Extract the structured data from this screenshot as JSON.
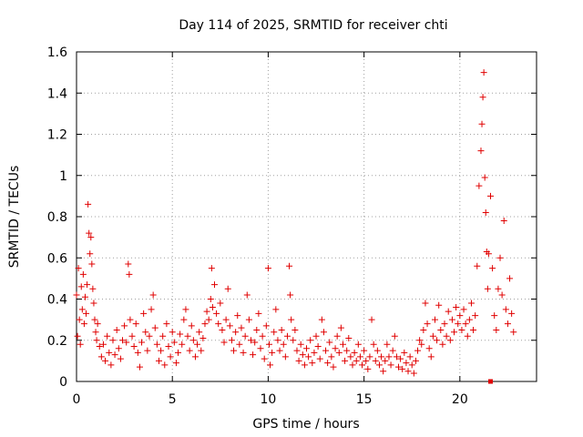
{
  "chart_data": {
    "type": "scatter",
    "title": "Day 114 of 2025, SRMTID for receiver chti",
    "xlabel": "GPS time / hours",
    "ylabel": "SRMTID / TECUs",
    "xlim": [
      0,
      24
    ],
    "ylim": [
      0,
      1.6
    ],
    "xticks": [
      0,
      5,
      10,
      15,
      20
    ],
    "xtick_labels": [
      "0",
      "5",
      "10",
      "15",
      "20"
    ],
    "yticks": [
      0,
      0.2,
      0.4,
      0.6,
      0.8,
      1,
      1.2,
      1.4,
      1.6
    ],
    "ytick_labels": [
      "0",
      "0.2",
      "0.4",
      "0.6",
      "0.8",
      "1",
      "1.2",
      "1.4",
      "1.6"
    ],
    "grid": true,
    "marker": "plus",
    "color": "#e00000",
    "series": [
      {
        "name": "SRMTID",
        "points": [
          [
            0.0,
            0.42
          ],
          [
            0.05,
            0.22
          ],
          [
            0.1,
            0.55
          ],
          [
            0.15,
            0.3
          ],
          [
            0.2,
            0.18
          ],
          [
            0.25,
            0.46
          ],
          [
            0.3,
            0.35
          ],
          [
            0.35,
            0.52
          ],
          [
            0.4,
            0.28
          ],
          [
            0.45,
            0.41
          ],
          [
            0.5,
            0.33
          ],
          [
            0.55,
            0.47
          ],
          [
            0.6,
            0.86
          ],
          [
            0.65,
            0.72
          ],
          [
            0.7,
            0.62
          ],
          [
            0.75,
            0.7
          ],
          [
            0.8,
            0.57
          ],
          [
            0.85,
            0.45
          ],
          [
            0.9,
            0.38
          ],
          [
            0.95,
            0.3
          ],
          [
            1.0,
            0.24
          ],
          [
            1.05,
            0.2
          ],
          [
            1.1,
            0.28
          ],
          [
            1.2,
            0.17
          ],
          [
            1.3,
            0.12
          ],
          [
            1.4,
            0.18
          ],
          [
            1.5,
            0.1
          ],
          [
            1.6,
            0.22
          ],
          [
            1.7,
            0.14
          ],
          [
            1.8,
            0.08
          ],
          [
            1.9,
            0.2
          ],
          [
            2.0,
            0.13
          ],
          [
            2.1,
            0.25
          ],
          [
            2.2,
            0.16
          ],
          [
            2.3,
            0.11
          ],
          [
            2.4,
            0.2
          ],
          [
            2.5,
            0.27
          ],
          [
            2.6,
            0.19
          ],
          [
            2.7,
            0.57
          ],
          [
            2.75,
            0.52
          ],
          [
            2.8,
            0.3
          ],
          [
            2.9,
            0.22
          ],
          [
            3.0,
            0.17
          ],
          [
            3.1,
            0.28
          ],
          [
            3.2,
            0.14
          ],
          [
            3.3,
            0.07
          ],
          [
            3.4,
            0.19
          ],
          [
            3.5,
            0.33
          ],
          [
            3.6,
            0.24
          ],
          [
            3.7,
            0.15
          ],
          [
            3.8,
            0.22
          ],
          [
            3.9,
            0.35
          ],
          [
            4.0,
            0.42
          ],
          [
            4.1,
            0.26
          ],
          [
            4.2,
            0.18
          ],
          [
            4.3,
            0.1
          ],
          [
            4.4,
            0.15
          ],
          [
            4.5,
            0.22
          ],
          [
            4.6,
            0.08
          ],
          [
            4.7,
            0.28
          ],
          [
            4.8,
            0.17
          ],
          [
            4.9,
            0.12
          ],
          [
            5.0,
            0.24
          ],
          [
            5.1,
            0.19
          ],
          [
            5.2,
            0.09
          ],
          [
            5.3,
            0.14
          ],
          [
            5.4,
            0.23
          ],
          [
            5.5,
            0.18
          ],
          [
            5.6,
            0.3
          ],
          [
            5.7,
            0.35
          ],
          [
            5.8,
            0.22
          ],
          [
            5.9,
            0.15
          ],
          [
            6.0,
            0.27
          ],
          [
            6.1,
            0.2
          ],
          [
            6.2,
            0.12
          ],
          [
            6.3,
            0.18
          ],
          [
            6.4,
            0.24
          ],
          [
            6.5,
            0.15
          ],
          [
            6.6,
            0.21
          ],
          [
            6.7,
            0.28
          ],
          [
            6.8,
            0.34
          ],
          [
            6.9,
            0.3
          ],
          [
            7.0,
            0.4
          ],
          [
            7.05,
            0.55
          ],
          [
            7.1,
            0.36
          ],
          [
            7.2,
            0.47
          ],
          [
            7.3,
            0.33
          ],
          [
            7.4,
            0.28
          ],
          [
            7.5,
            0.38
          ],
          [
            7.6,
            0.25
          ],
          [
            7.7,
            0.19
          ],
          [
            7.8,
            0.3
          ],
          [
            7.9,
            0.45
          ],
          [
            8.0,
            0.27
          ],
          [
            8.1,
            0.2
          ],
          [
            8.2,
            0.15
          ],
          [
            8.3,
            0.24
          ],
          [
            8.4,
            0.32
          ],
          [
            8.5,
            0.18
          ],
          [
            8.6,
            0.26
          ],
          [
            8.7,
            0.14
          ],
          [
            8.8,
            0.22
          ],
          [
            8.9,
            0.42
          ],
          [
            9.0,
            0.3
          ],
          [
            9.1,
            0.2
          ],
          [
            9.2,
            0.13
          ],
          [
            9.3,
            0.19
          ],
          [
            9.4,
            0.25
          ],
          [
            9.5,
            0.33
          ],
          [
            9.6,
            0.16
          ],
          [
            9.7,
            0.22
          ],
          [
            9.8,
            0.11
          ],
          [
            9.9,
            0.27
          ],
          [
            10.0,
            0.55
          ],
          [
            10.05,
            0.18
          ],
          [
            10.1,
            0.08
          ],
          [
            10.2,
            0.14
          ],
          [
            10.3,
            0.24
          ],
          [
            10.4,
            0.35
          ],
          [
            10.5,
            0.2
          ],
          [
            10.6,
            0.15
          ],
          [
            10.7,
            0.25
          ],
          [
            10.8,
            0.18
          ],
          [
            10.9,
            0.12
          ],
          [
            11.0,
            0.22
          ],
          [
            11.1,
            0.56
          ],
          [
            11.15,
            0.42
          ],
          [
            11.2,
            0.3
          ],
          [
            11.3,
            0.2
          ],
          [
            11.4,
            0.25
          ],
          [
            11.5,
            0.15
          ],
          [
            11.6,
            0.1
          ],
          [
            11.7,
            0.18
          ],
          [
            11.8,
            0.13
          ],
          [
            11.9,
            0.08
          ],
          [
            12.0,
            0.16
          ],
          [
            12.1,
            0.12
          ],
          [
            12.2,
            0.2
          ],
          [
            12.3,
            0.09
          ],
          [
            12.4,
            0.14
          ],
          [
            12.5,
            0.22
          ],
          [
            12.6,
            0.17
          ],
          [
            12.7,
            0.11
          ],
          [
            12.8,
            0.3
          ],
          [
            12.9,
            0.24
          ],
          [
            13.0,
            0.15
          ],
          [
            13.1,
            0.09
          ],
          [
            13.2,
            0.19
          ],
          [
            13.3,
            0.12
          ],
          [
            13.4,
            0.07
          ],
          [
            13.5,
            0.16
          ],
          [
            13.6,
            0.22
          ],
          [
            13.7,
            0.14
          ],
          [
            13.8,
            0.26
          ],
          [
            13.9,
            0.18
          ],
          [
            14.0,
            0.1
          ],
          [
            14.1,
            0.15
          ],
          [
            14.2,
            0.21
          ],
          [
            14.3,
            0.12
          ],
          [
            14.4,
            0.08
          ],
          [
            14.5,
            0.14
          ],
          [
            14.6,
            0.1
          ],
          [
            14.7,
            0.18
          ],
          [
            14.8,
            0.12
          ],
          [
            14.9,
            0.08
          ],
          [
            15.0,
            0.15
          ],
          [
            15.1,
            0.1
          ],
          [
            15.2,
            0.06
          ],
          [
            15.3,
            0.12
          ],
          [
            15.4,
            0.3
          ],
          [
            15.5,
            0.18
          ],
          [
            15.6,
            0.1
          ],
          [
            15.7,
            0.15
          ],
          [
            15.8,
            0.08
          ],
          [
            15.9,
            0.12
          ],
          [
            16.0,
            0.05
          ],
          [
            16.1,
            0.1
          ],
          [
            16.2,
            0.18
          ],
          [
            16.3,
            0.12
          ],
          [
            16.4,
            0.08
          ],
          [
            16.5,
            0.15
          ],
          [
            16.6,
            0.22
          ],
          [
            16.7,
            0.12
          ],
          [
            16.8,
            0.07
          ],
          [
            16.9,
            0.11
          ],
          [
            17.0,
            0.06
          ],
          [
            17.1,
            0.14
          ],
          [
            17.2,
            0.09
          ],
          [
            17.3,
            0.05
          ],
          [
            17.4,
            0.12
          ],
          [
            17.5,
            0.08
          ],
          [
            17.6,
            0.04
          ],
          [
            17.7,
            0.1
          ],
          [
            17.8,
            0.15
          ],
          [
            17.9,
            0.2
          ],
          [
            18.0,
            0.18
          ],
          [
            18.1,
            0.25
          ],
          [
            18.2,
            0.38
          ],
          [
            18.3,
            0.28
          ],
          [
            18.4,
            0.16
          ],
          [
            18.5,
            0.12
          ],
          [
            18.6,
            0.22
          ],
          [
            18.7,
            0.3
          ],
          [
            18.8,
            0.2
          ],
          [
            18.9,
            0.37
          ],
          [
            19.0,
            0.25
          ],
          [
            19.1,
            0.18
          ],
          [
            19.2,
            0.28
          ],
          [
            19.3,
            0.22
          ],
          [
            19.4,
            0.34
          ],
          [
            19.5,
            0.2
          ],
          [
            19.6,
            0.3
          ],
          [
            19.7,
            0.24
          ],
          [
            19.8,
            0.36
          ],
          [
            19.9,
            0.28
          ],
          [
            20.0,
            0.32
          ],
          [
            20.1,
            0.25
          ],
          [
            20.2,
            0.35
          ],
          [
            20.3,
            0.28
          ],
          [
            20.4,
            0.22
          ],
          [
            20.5,
            0.3
          ],
          [
            20.6,
            0.38
          ],
          [
            20.7,
            0.25
          ],
          [
            20.8,
            0.32
          ],
          [
            20.9,
            0.56
          ],
          [
            21.0,
            0.95
          ],
          [
            21.1,
            1.12
          ],
          [
            21.15,
            1.25
          ],
          [
            21.2,
            1.38
          ],
          [
            21.25,
            1.5
          ],
          [
            21.3,
            0.99
          ],
          [
            21.35,
            0.82
          ],
          [
            21.4,
            0.63
          ],
          [
            21.45,
            0.45
          ],
          [
            21.5,
            0.62
          ],
          [
            21.6,
            0.9
          ],
          [
            21.7,
            0.55
          ],
          [
            21.8,
            0.32
          ],
          [
            21.9,
            0.25
          ],
          [
            22.0,
            0.45
          ],
          [
            22.1,
            0.6
          ],
          [
            22.2,
            0.42
          ],
          [
            22.3,
            0.78
          ],
          [
            22.4,
            0.35
          ],
          [
            22.5,
            0.28
          ],
          [
            22.6,
            0.5
          ],
          [
            22.7,
            0.33
          ],
          [
            22.8,
            0.24
          ]
        ]
      }
    ],
    "annotation_points": [
      {
        "x": 21.6,
        "y": 0.0,
        "marker": "square",
        "color": "#e00000"
      }
    ]
  }
}
